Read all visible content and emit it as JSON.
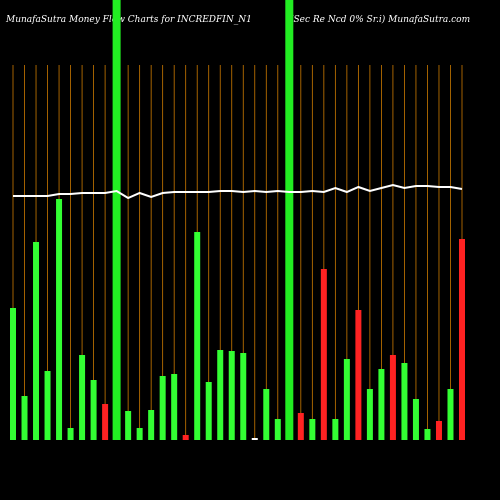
{
  "chart_data": {
    "type": "bar",
    "title": "MunafaSutra  Money Flow  Charts for INCREDFIN_N1",
    "subtitle": "(Sec Re   Ncd 0% Sr.i) MunafaSutra.com",
    "categories": [
      null,
      null,
      null,
      null,
      null,
      null,
      null,
      null,
      null,
      null,
      null,
      null,
      null,
      null,
      null,
      null,
      null,
      null,
      null,
      null,
      null,
      null,
      null,
      null,
      null,
      null,
      null,
      null,
      null,
      null,
      null,
      null,
      null,
      null,
      null,
      null,
      null,
      null,
      null,
      null
    ],
    "values": [
      132,
      44,
      198,
      69,
      241,
      12,
      85,
      60,
      36,
      null,
      29,
      12,
      30,
      64,
      66,
      5,
      208,
      58,
      90,
      89,
      87,
      2,
      51,
      21,
      null,
      27,
      21,
      171,
      21,
      81,
      130,
      51,
      71,
      85,
      77,
      41,
      11,
      19,
      51,
      201
    ],
    "colors": [
      "#33ff33",
      "#33ff33",
      "#33ff33",
      "#33ff33",
      "#33ff33",
      "#33ff33",
      "#33ff33",
      "#33ff33",
      "#ff2222",
      "#33ff33",
      "#33ff33",
      "#33ff33",
      "#33ff33",
      "#33ff33",
      "#33ff33",
      "#ff2222",
      "#33ff33",
      "#33ff33",
      "#33ff33",
      "#33ff33",
      "#33ff33",
      "#ffffff",
      "#33ff33",
      "#33ff33",
      "#33ff33",
      "#ff2222",
      "#33ff33",
      "#ff2222",
      "#33ff33",
      "#33ff33",
      "#ff2222",
      "#33ff33",
      "#33ff33",
      "#ff2222",
      "#33ff33",
      "#33ff33",
      "#33ff33",
      "#ff2222",
      "#33ff33",
      "#ff2222"
    ],
    "line": {
      "color": "#ffffff",
      "values": [
        244,
        244,
        244,
        244,
        246,
        246,
        247,
        247,
        247,
        249,
        242,
        247,
        243,
        247,
        248,
        248,
        248,
        248,
        249,
        249,
        248,
        249,
        248,
        249,
        248,
        248,
        249,
        248,
        252,
        248,
        253,
        249,
        252,
        255,
        252,
        254,
        254,
        253,
        253,
        251
      ]
    },
    "highlight_indices": [
      9,
      24
    ],
    "highlight_color": "#22ee22",
    "grid_color": "#cc7a00",
    "ylim": [
      0,
      380
    ],
    "grid": true
  }
}
